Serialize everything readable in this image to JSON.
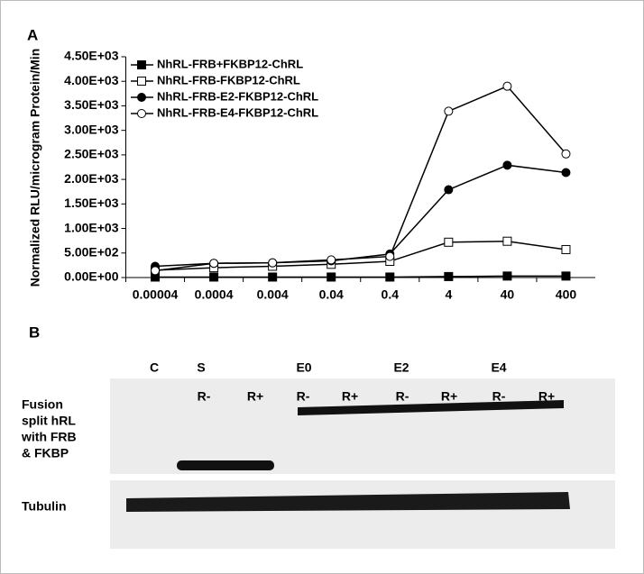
{
  "chart_data": {
    "type": "line",
    "panel_label": "A",
    "y_label": "Normalized RLU/microgram Protein/Min",
    "categories": [
      "0.00004",
      "0.0004",
      "0.004",
      "0.04",
      "0.4",
      "4",
      "40",
      "400"
    ],
    "series": [
      {
        "name": "NhRL-FRB+FKBP12-ChRL",
        "color": "#000000",
        "marker": "filled-square",
        "values": [
          10,
          10,
          10,
          10,
          10,
          20,
          30,
          30
        ]
      },
      {
        "name": "NhRL-FRB-FKBP12-ChRL",
        "color": "#000000",
        "marker": "open-square",
        "values": [
          150,
          200,
          230,
          270,
          330,
          720,
          740,
          570
        ]
      },
      {
        "name": "NhRL-FRB-E2-FKBP12-ChRL",
        "color": "#000000",
        "marker": "filled-circle",
        "values": [
          230,
          290,
          300,
          340,
          480,
          1790,
          2290,
          2140
        ]
      },
      {
        "name": "NhRL-FRB-E4-FKBP12-ChRL",
        "color": "#000000",
        "marker": "open-circle",
        "values": [
          140,
          290,
          300,
          360,
          430,
          3390,
          3900,
          2520
        ]
      }
    ],
    "ylim": [
      0,
      4500
    ],
    "yticks": [
      {
        "value": 0,
        "label": "0.00E+00"
      },
      {
        "value": 500,
        "label": "5.00E+02"
      },
      {
        "value": 1000,
        "label": "1.00E+03"
      },
      {
        "value": 1500,
        "label": "1.50E+03"
      },
      {
        "value": 2000,
        "label": "2.00E+03"
      },
      {
        "value": 2500,
        "label": "2.50E+03"
      },
      {
        "value": 3000,
        "label": "3.00E+03"
      },
      {
        "value": 3500,
        "label": "3.50E+03"
      },
      {
        "value": 4000,
        "label": "4.00E+03"
      },
      {
        "value": 4500,
        "label": "4.50E+03"
      }
    ],
    "legend": "upper-left"
  },
  "blot": {
    "panel_label": "B",
    "groups": [
      "C",
      "S",
      "E0",
      "E2",
      "E4"
    ],
    "lanes": [
      "R-",
      "R+",
      "R-",
      "R+",
      "R-",
      "R+",
      "R-",
      "R+"
    ],
    "rows": [
      {
        "label": [
          "Fusion",
          "split hRL",
          "with FRB",
          "& FKBP"
        ]
      },
      {
        "label": [
          "Tubulin"
        ]
      }
    ]
  }
}
